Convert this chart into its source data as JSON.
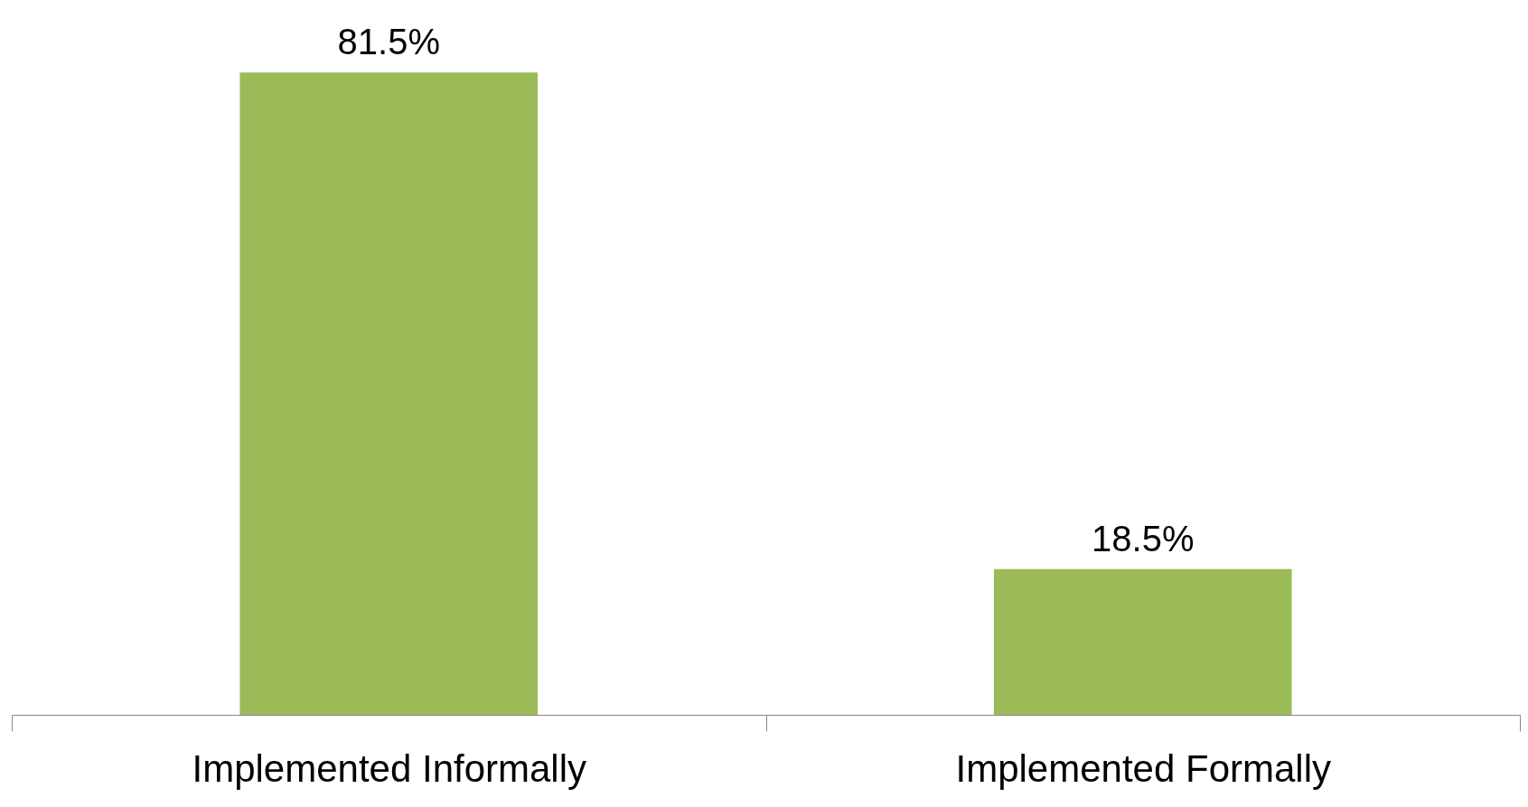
{
  "chart_data": {
    "type": "bar",
    "categories": [
      "Implemented Informally",
      "Implemented Formally"
    ],
    "values": [
      81.5,
      18.5
    ],
    "value_labels": [
      "81.5%",
      "18.5%"
    ],
    "color": "#9bbb59"
  }
}
